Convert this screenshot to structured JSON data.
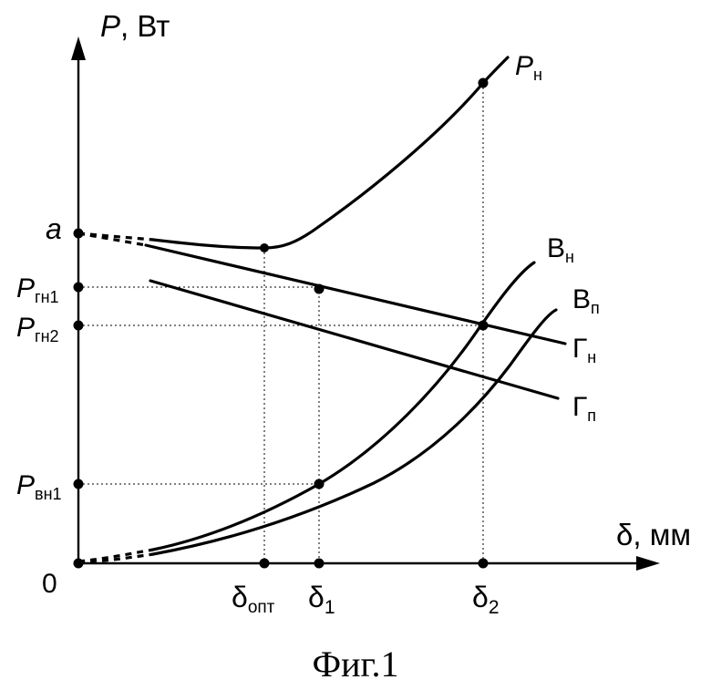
{
  "axes": {
    "y_symbol": "P",
    "y_unit": ", Вт",
    "x_symbol": "δ",
    "x_unit": ", мм",
    "origin": "0"
  },
  "y_ticks": {
    "a": "a",
    "p_gn1": {
      "main": "P",
      "sub": "гн1"
    },
    "p_gn2": {
      "main": "P",
      "sub": "гн2"
    },
    "p_vn1": {
      "main": "P",
      "sub": "вн1"
    }
  },
  "x_ticks": {
    "d_opt": {
      "main": "δ",
      "sub": "опт"
    },
    "d_1": {
      "main": "δ",
      "sub": "1"
    },
    "d_2": {
      "main": "δ",
      "sub": "2"
    }
  },
  "curves": {
    "p_n": {
      "main": "P",
      "sub": "н"
    },
    "v_n": {
      "main": "В",
      "sub": "н"
    },
    "v_p": {
      "main": "В",
      "sub": "п"
    },
    "g_n": {
      "main": "Г",
      "sub": "н"
    },
    "g_p": {
      "main": "Г",
      "sub": "п"
    }
  },
  "caption": "Фиг.1"
}
